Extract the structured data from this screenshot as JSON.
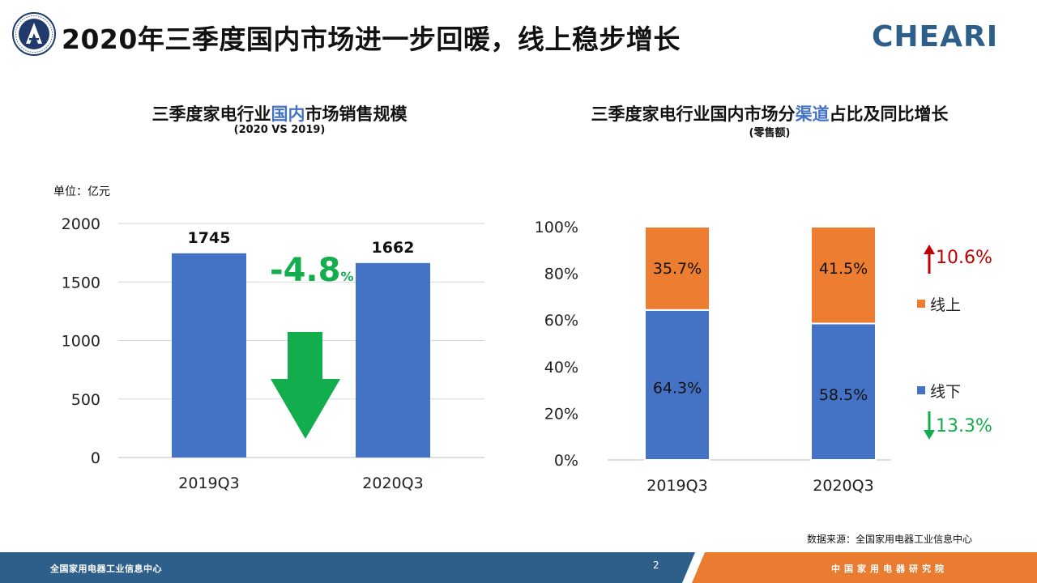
{
  "page_title": "2020年三季度国内市场进一步回暖，线上稳步增长",
  "brand": {
    "logo_text": "CHEARI",
    "colors": {
      "primary": "#2e5f8a",
      "accent": "#ea7c32"
    }
  },
  "unit_label": "单位：亿元",
  "source_note": "数据来源：全国家用电器工业信息中心",
  "footer": {
    "left": "全国家用电器工业信息中心",
    "page": "2",
    "right": "中国家用电器研究院"
  },
  "chart_data": [
    {
      "type": "bar",
      "title_parts": [
        "三季度家电行业",
        "国内",
        "市场销售规模"
      ],
      "subtitle": "(2020 VS 2019)",
      "categories": [
        "2019Q3",
        "2020Q3"
      ],
      "values": [
        1745,
        1662
      ],
      "value_labels": [
        "1745",
        "1662"
      ],
      "ylim": [
        0,
        2000
      ],
      "yticks": [
        "0",
        "500",
        "1000",
        "1500",
        "2000"
      ],
      "grid": true,
      "bar_color": "#4472c4",
      "change": {
        "value": "-4.8",
        "unit": "%",
        "direction": "down",
        "color": "#12ad4d"
      }
    },
    {
      "type": "bar",
      "stacked": true,
      "percent": true,
      "title_parts": [
        "三季度家电行业国内市场分",
        "渠道",
        "占比及同比增长"
      ],
      "subtitle": "(零售额)",
      "categories": [
        "2019Q3",
        "2020Q3"
      ],
      "series": [
        {
          "name": "线下",
          "values": [
            64.3,
            58.5
          ],
          "labels": [
            "64.3%",
            "58.5%"
          ],
          "color": "#4472c4",
          "growth": {
            "text": "13.3%",
            "direction": "down",
            "color": "#12ad4d"
          }
        },
        {
          "name": "线上",
          "values": [
            35.7,
            41.5
          ],
          "labels": [
            "35.7%",
            "41.5%"
          ],
          "color": "#ed7d31",
          "growth": {
            "text": "10.6%",
            "direction": "up",
            "color": "#c00000"
          }
        }
      ],
      "ylim": [
        0,
        100
      ],
      "yticks": [
        "0%",
        "20%",
        "40%",
        "60%",
        "80%",
        "100%"
      ],
      "legend_position": "right"
    }
  ]
}
